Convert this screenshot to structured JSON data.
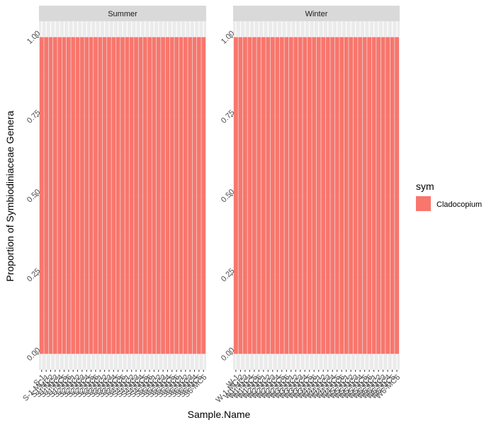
{
  "chart_data": {
    "type": "bar",
    "xlabel": "Sample.Name",
    "ylabel": "Proportion of Symbiodiniaceae Genera",
    "ylim": [
      0,
      1
    ],
    "y_ticks": [
      "0.00",
      "0.25",
      "0.50",
      "0.75",
      "1.00"
    ],
    "grid": true,
    "legend": {
      "title": "sym",
      "position": "right",
      "entries": [
        {
          "label": "Cladocopium",
          "color": "#F8766D"
        }
      ]
    },
    "colors": {
      "Cladocopium": "#F8766D",
      "panel_bg": "#EBEBEB",
      "strip_bg": "#D9D9D9"
    },
    "panels": [
      {
        "name": "Summer",
        "categories": [
          "S-1",
          "S-1-MC-1",
          "S1-MC2",
          "S1-MC3",
          "S1-MC4",
          "S1-MC5",
          "S1-MC6",
          "S2-MC1",
          "S2-MC2",
          "S2-MC3",
          "S2-MC4",
          "S2-MC5",
          "S2-MC6",
          "S3-MC1",
          "S3-MC2",
          "S3-MC3",
          "S3-MC4",
          "S3-MC5",
          "S3-MC6",
          "S4-MC1",
          "S4-MC2",
          "S4-MC3",
          "S4-MC4",
          "S4-MC5",
          "S4-MC6",
          "S5-MC1",
          "S5-MC2",
          "S5-MC3",
          "S5-MC4",
          "S5-MC5",
          "S5-MC6",
          "S6-MC1",
          "S6-MC2",
          "S6-MC3",
          "S6-MC4",
          "S6-MC5",
          "S6-MC6"
        ],
        "series": [
          {
            "name": "Cladocopium",
            "values": [
              1,
              1,
              1,
              1,
              1,
              1,
              1,
              1,
              1,
              1,
              1,
              1,
              1,
              1,
              1,
              1,
              1,
              1,
              1,
              1,
              1,
              1,
              1,
              1,
              1,
              1,
              1,
              1,
              1,
              1,
              1,
              1,
              1,
              1,
              1,
              1,
              1
            ]
          }
        ]
      },
      {
        "name": "Winter",
        "categories": [
          "W-1",
          "W-1-MC-2",
          "W1-MC3",
          "W1-MC4",
          "W1-MC5",
          "W1-MC6",
          "W2-MC1",
          "W2-MC2",
          "W2-MC3",
          "W2-MC4",
          "W2-MC5",
          "W2-MC6",
          "W3-MC1",
          "W3-MC2",
          "W3-MC3",
          "W3-MC4",
          "W3-MC5",
          "W3-MC6",
          "W4-MC1",
          "W4-MC2",
          "W4-MC3",
          "W4-MC4",
          "W4-MC5",
          "W4-MC6",
          "W5-MC1",
          "W5-MC2",
          "W5-MC3",
          "W5-MC4",
          "W5-MC5",
          "W5-MC6",
          "W6-MC1",
          "W6-MC2",
          "W6-MC3",
          "W6-MC4",
          "W6-MC5",
          "W6-MC6"
        ],
        "series": [
          {
            "name": "Cladocopium",
            "values": [
              1,
              1,
              1,
              1,
              1,
              1,
              1,
              1,
              1,
              1,
              1,
              1,
              1,
              1,
              1,
              1,
              1,
              1,
              1,
              1,
              1,
              1,
              1,
              1,
              1,
              1,
              1,
              1,
              1,
              1,
              1,
              1,
              1,
              1,
              1,
              1
            ]
          }
        ]
      }
    ]
  }
}
